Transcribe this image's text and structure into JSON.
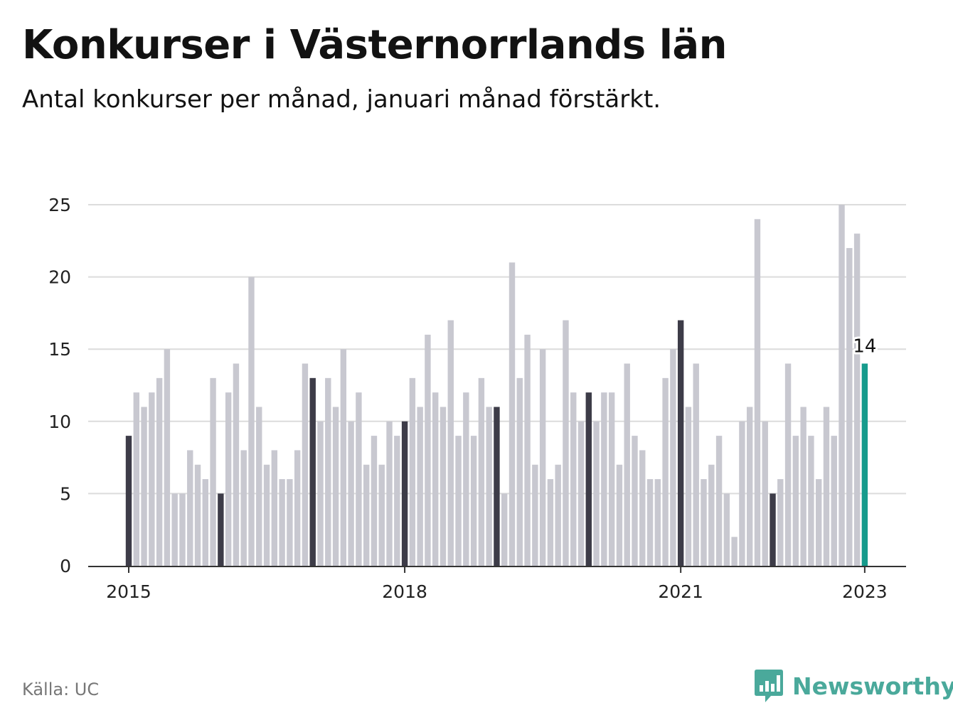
{
  "title": "Konkurser i Västernorrlands län",
  "subtitle": "Antal konkurser per månad, januari månad förstärkt.",
  "source": "Källa: UC",
  "brand": "Newsworthy",
  "colors": {
    "bar": "#c8c8d0",
    "january": "#3d3c48",
    "latest": "#169b8c",
    "grid": "#dcdcdc",
    "axis": "#333333",
    "brand": "#4aa99b"
  },
  "chart_data": {
    "type": "bar",
    "title": "Konkurser i Västernorrlands län",
    "xlabel": "",
    "ylabel": "",
    "ylim": [
      0,
      25
    ],
    "yticks": [
      0,
      5,
      10,
      15,
      20,
      25
    ],
    "xticks": [
      {
        "label": "2015",
        "index": 0
      },
      {
        "label": "2018",
        "index": 36
      },
      {
        "label": "2021",
        "index": 72
      },
      {
        "label": "2023",
        "index": 96
      }
    ],
    "highlight": "January months emphasized; latest month (January 2023) labeled",
    "latest_label": "14",
    "start": "2015-01",
    "end": "2023-01",
    "values": [
      9,
      12,
      11,
      12,
      13,
      15,
      5,
      5,
      8,
      7,
      6,
      13,
      5,
      12,
      14,
      8,
      20,
      11,
      7,
      8,
      6,
      6,
      8,
      14,
      13,
      10,
      13,
      11,
      15,
      10,
      12,
      7,
      9,
      7,
      10,
      9,
      10,
      13,
      11,
      16,
      12,
      11,
      17,
      9,
      12,
      9,
      13,
      11,
      11,
      5,
      21,
      13,
      16,
      7,
      15,
      6,
      7,
      17,
      12,
      10,
      12,
      10,
      12,
      12,
      7,
      14,
      9,
      8,
      6,
      6,
      13,
      15,
      17,
      11,
      14,
      6,
      7,
      9,
      5,
      2,
      10,
      11,
      24,
      10,
      5,
      6,
      14,
      9,
      11,
      9,
      6,
      11,
      9,
      25,
      22,
      23,
      14
    ]
  }
}
